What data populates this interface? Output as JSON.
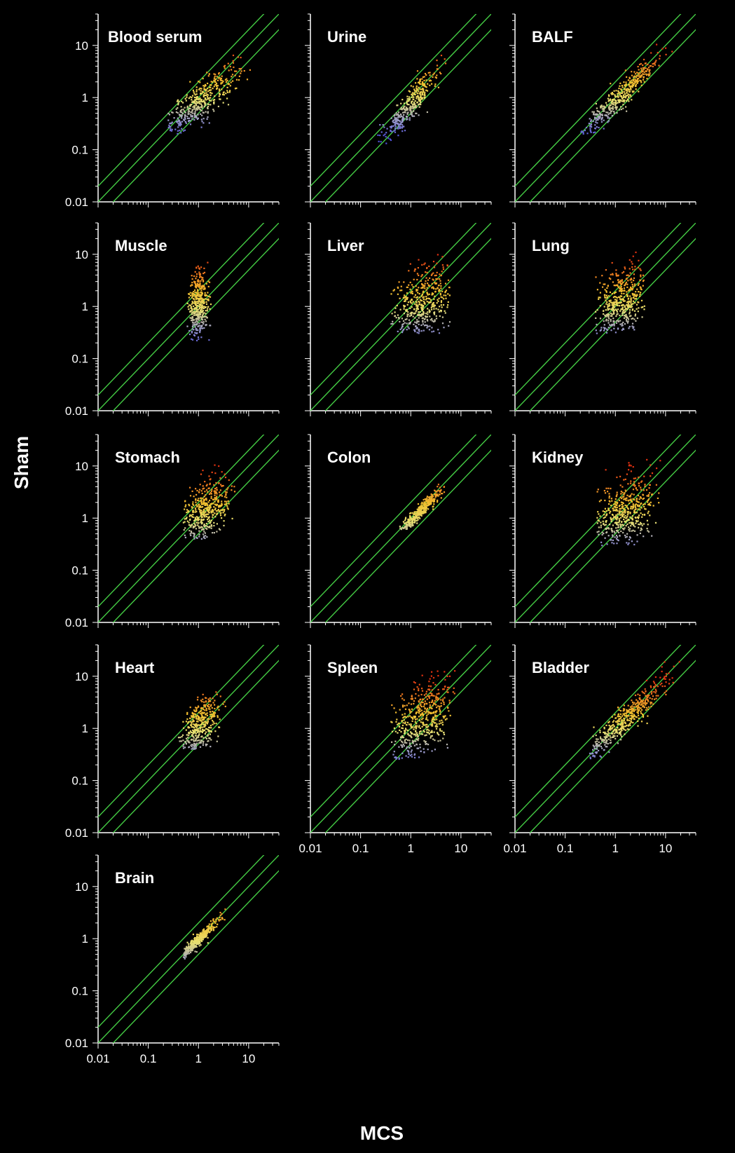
{
  "figure": {
    "y_label": "Sham",
    "x_label": "MCS"
  },
  "colors": {
    "background": "#000000",
    "axis": "#ffffff",
    "reference_lines": "#44cc44",
    "point_palette": [
      "#5050d8",
      "#a0a0c8",
      "#e8e070",
      "#f0c030",
      "#f08020",
      "#e03010"
    ]
  },
  "chart_data": [
    {
      "type": "scatter",
      "title": "Blood serum",
      "x_scale": "log",
      "y_scale": "log",
      "xlim": [
        0.01,
        40
      ],
      "ylim": [
        0.01,
        40
      ],
      "y_tick_labels": [
        "0.01",
        "0.1",
        "1",
        "10"
      ],
      "x_tick_labels": [],
      "reference_lines": [
        "y = 2x",
        "y = x",
        "y = 0.5x"
      ],
      "cloud": {
        "x_center": 1.1,
        "y_center": 0.85,
        "x_spread": 0.38,
        "y_spread": 0.34,
        "rho": 0.85,
        "x_range": [
          0.25,
          12
        ],
        "y_range": [
          0.2,
          11
        ],
        "n": 420
      }
    },
    {
      "type": "scatter",
      "title": "Urine",
      "x_scale": "log",
      "y_scale": "log",
      "xlim": [
        0.01,
        40
      ],
      "ylim": [
        0.01,
        40
      ],
      "y_tick_labels": [],
      "x_tick_labels": [],
      "reference_lines": [
        "y = 2x",
        "y = x",
        "y = 0.5x"
      ],
      "cloud": {
        "x_center": 0.9,
        "y_center": 0.65,
        "x_spread": 0.3,
        "y_spread": 0.38,
        "rho": 0.92,
        "x_range": [
          0.15,
          10
        ],
        "y_range": [
          0.12,
          9
        ],
        "n": 360
      }
    },
    {
      "type": "scatter",
      "title": "BALF",
      "x_scale": "log",
      "y_scale": "log",
      "xlim": [
        0.01,
        40
      ],
      "ylim": [
        0.01,
        40
      ],
      "y_tick_labels": [],
      "x_tick_labels": [],
      "reference_lines": [
        "y = 2x",
        "y = x",
        "y = 0.5x"
      ],
      "cloud": {
        "x_center": 1.3,
        "y_center": 1.1,
        "x_spread": 0.4,
        "y_spread": 0.4,
        "rho": 0.95,
        "x_range": [
          0.2,
          30
        ],
        "y_range": [
          0.2,
          30
        ],
        "n": 420
      }
    },
    {
      "type": "scatter",
      "title": "Muscle",
      "x_scale": "log",
      "y_scale": "log",
      "xlim": [
        0.01,
        40
      ],
      "ylim": [
        0.01,
        40
      ],
      "y_tick_labels": [
        "0.01",
        "0.1",
        "1",
        "10"
      ],
      "x_tick_labels": [],
      "reference_lines": [
        "y = 2x",
        "y = x",
        "y = 0.5x"
      ],
      "cloud": {
        "x_center": 1.0,
        "y_center": 1.1,
        "x_spread": 0.1,
        "y_spread": 0.35,
        "rho": 0.1,
        "x_range": [
          0.6,
          1.8
        ],
        "y_range": [
          0.2,
          8
        ],
        "n": 420
      }
    },
    {
      "type": "scatter",
      "title": "Liver",
      "x_scale": "log",
      "y_scale": "log",
      "xlim": [
        0.01,
        40
      ],
      "ylim": [
        0.01,
        40
      ],
      "y_tick_labels": [],
      "x_tick_labels": [],
      "reference_lines": [
        "y = 2x",
        "y = x",
        "y = 0.5x"
      ],
      "cloud": {
        "x_center": 1.6,
        "y_center": 1.1,
        "x_spread": 0.32,
        "y_spread": 0.38,
        "rho": 0.35,
        "x_range": [
          0.4,
          6
        ],
        "y_range": [
          0.3,
          17
        ],
        "n": 520
      }
    },
    {
      "type": "scatter",
      "title": "Lung",
      "x_scale": "log",
      "y_scale": "log",
      "xlim": [
        0.01,
        40
      ],
      "ylim": [
        0.01,
        40
      ],
      "y_tick_labels": [],
      "x_tick_labels": [],
      "reference_lines": [
        "y = 2x",
        "y = x",
        "y = 0.5x"
      ],
      "cloud": {
        "x_center": 1.3,
        "y_center": 1.2,
        "x_spread": 0.25,
        "y_spread": 0.35,
        "rho": 0.3,
        "x_range": [
          0.4,
          4
        ],
        "y_range": [
          0.3,
          12
        ],
        "n": 480
      }
    },
    {
      "type": "scatter",
      "title": "Stomach",
      "x_scale": "log",
      "y_scale": "log",
      "xlim": [
        0.01,
        40
      ],
      "ylim": [
        0.01,
        40
      ],
      "y_tick_labels": [
        "0.01",
        "0.1",
        "1",
        "10"
      ],
      "x_tick_labels": [],
      "reference_lines": [
        "y = 2x",
        "y = x",
        "y = 0.5x"
      ],
      "cloud": {
        "x_center": 1.3,
        "y_center": 1.4,
        "x_spread": 0.28,
        "y_spread": 0.34,
        "rho": 0.55,
        "x_range": [
          0.5,
          6
        ],
        "y_range": [
          0.4,
          12
        ],
        "n": 480
      }
    },
    {
      "type": "scatter",
      "title": "Colon",
      "x_scale": "log",
      "y_scale": "log",
      "xlim": [
        0.01,
        40
      ],
      "ylim": [
        0.01,
        40
      ],
      "y_tick_labels": [],
      "x_tick_labels": [],
      "reference_lines": [
        "y = 2x",
        "y = x",
        "y = 0.5x"
      ],
      "cloud": {
        "x_center": 1.6,
        "y_center": 1.4,
        "x_spread": 0.22,
        "y_spread": 0.22,
        "rho": 0.95,
        "x_range": [
          0.6,
          6
        ],
        "y_range": [
          0.6,
          7
        ],
        "n": 360
      }
    },
    {
      "type": "scatter",
      "title": "Kidney",
      "x_scale": "log",
      "y_scale": "log",
      "xlim": [
        0.01,
        40
      ],
      "ylim": [
        0.01,
        40
      ],
      "y_tick_labels": [],
      "x_tick_labels": [],
      "reference_lines": [
        "y = 2x",
        "y = x",
        "y = 0.5x"
      ],
      "cloud": {
        "x_center": 1.6,
        "y_center": 1.3,
        "x_spread": 0.32,
        "y_spread": 0.36,
        "rho": 0.35,
        "x_range": [
          0.4,
          8
        ],
        "y_range": [
          0.3,
          16
        ],
        "n": 520
      }
    },
    {
      "type": "scatter",
      "title": "Heart",
      "x_scale": "log",
      "y_scale": "log",
      "xlim": [
        0.01,
        40
      ],
      "ylim": [
        0.01,
        40
      ],
      "y_tick_labels": [
        "0.01",
        "0.1",
        "1",
        "10"
      ],
      "x_tick_labels": [],
      "reference_lines": [
        "y = 2x",
        "y = x",
        "y = 0.5x"
      ],
      "cloud": {
        "x_center": 1.1,
        "y_center": 1.1,
        "x_spread": 0.18,
        "y_spread": 0.3,
        "rho": 0.45,
        "x_range": [
          0.4,
          3.5
        ],
        "y_range": [
          0.4,
          5
        ],
        "n": 420
      }
    },
    {
      "type": "scatter",
      "title": "Spleen",
      "x_scale": "log",
      "y_scale": "log",
      "xlim": [
        0.01,
        40
      ],
      "ylim": [
        0.01,
        40
      ],
      "y_tick_labels": [],
      "x_tick_labels": [
        "0.01",
        "0.1",
        "1",
        "10"
      ],
      "reference_lines": [
        "y = 2x",
        "y = x",
        "y = 0.5x"
      ],
      "cloud": {
        "x_center": 1.5,
        "y_center": 1.4,
        "x_spread": 0.32,
        "y_spread": 0.42,
        "rho": 0.45,
        "x_range": [
          0.4,
          8
        ],
        "y_range": [
          0.25,
          13
        ],
        "n": 540
      }
    },
    {
      "type": "scatter",
      "title": "Bladder",
      "x_scale": "log",
      "y_scale": "log",
      "xlim": [
        0.01,
        40
      ],
      "ylim": [
        0.01,
        40
      ],
      "y_tick_labels": [],
      "x_tick_labels": [
        "0.01",
        "0.1",
        "1",
        "10"
      ],
      "reference_lines": [
        "y = 2x",
        "y = x",
        "y = 0.5x"
      ],
      "cloud": {
        "x_center": 1.6,
        "y_center": 1.5,
        "x_spread": 0.4,
        "y_spread": 0.4,
        "rho": 0.93,
        "x_range": [
          0.3,
          20
        ],
        "y_range": [
          0.25,
          20
        ],
        "n": 460
      }
    },
    {
      "type": "scatter",
      "title": "Brain",
      "x_scale": "log",
      "y_scale": "log",
      "xlim": [
        0.01,
        40
      ],
      "ylim": [
        0.01,
        40
      ],
      "y_tick_labels": [
        "0.01",
        "0.1",
        "1",
        "10"
      ],
      "x_tick_labels": [
        "0.01",
        "0.1",
        "1",
        "10"
      ],
      "reference_lines": [
        "y = 2x",
        "y = x",
        "y = 0.5x"
      ],
      "cloud": {
        "x_center": 1.0,
        "y_center": 0.95,
        "x_spread": 0.2,
        "y_spread": 0.2,
        "rho": 0.96,
        "x_range": [
          0.5,
          3.5
        ],
        "y_range": [
          0.4,
          4
        ],
        "n": 380
      }
    }
  ]
}
